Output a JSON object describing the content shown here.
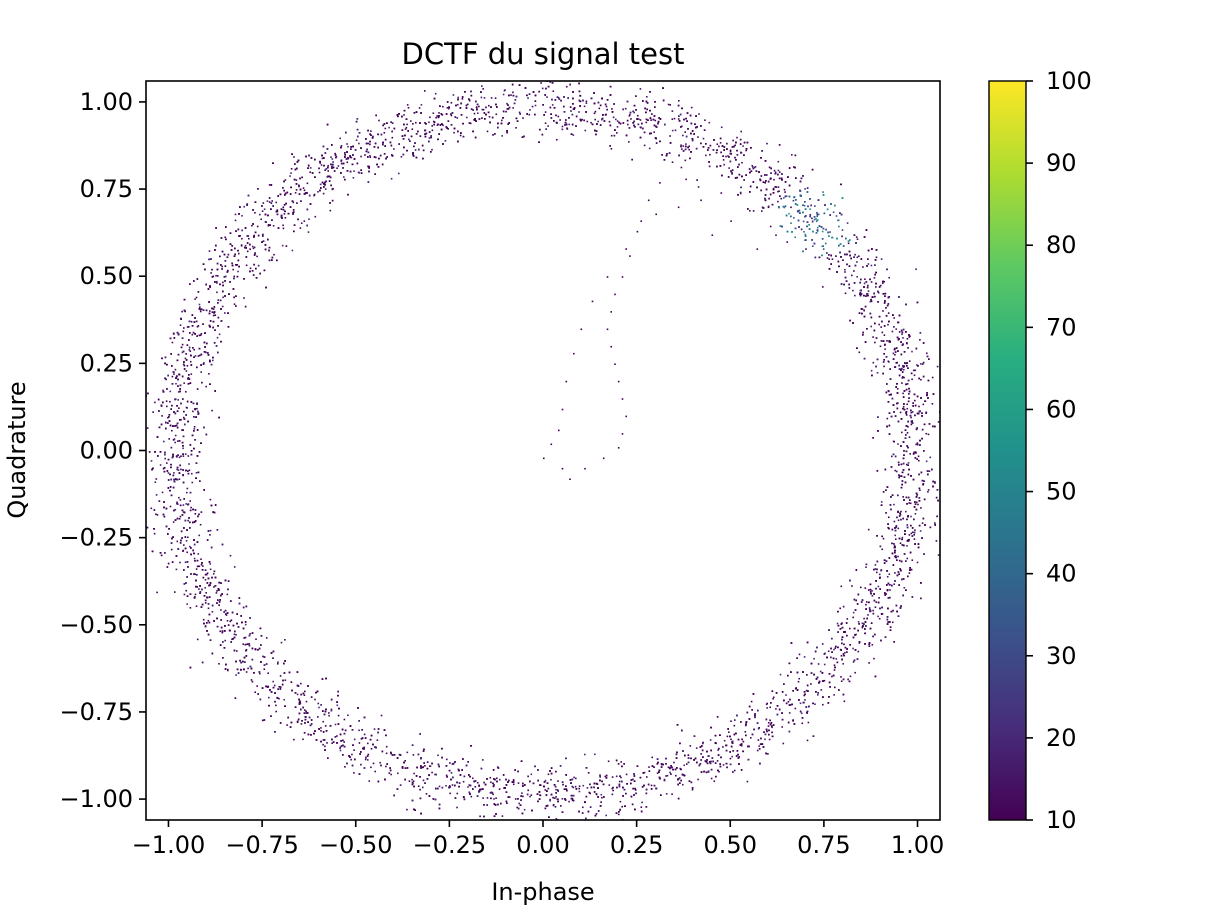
{
  "chart_data": {
    "type": "heatmap",
    "title": "DCTF du signal test",
    "xlabel": "In-phase",
    "ylabel": "Quadrature",
    "xlim": [
      -1.06,
      1.06
    ],
    "ylim": [
      -1.06,
      1.06
    ],
    "xticks": [
      -1.0,
      -0.75,
      -0.5,
      -0.25,
      0.0,
      0.25,
      0.5,
      0.75,
      1.0
    ],
    "xtick_labels": [
      "−1.00",
      "−0.75",
      "−0.50",
      "−0.25",
      "0.00",
      "0.25",
      "0.50",
      "0.75",
      "1.00"
    ],
    "yticks": [
      1.0,
      0.75,
      0.5,
      0.25,
      0.0,
      -0.25,
      -0.5,
      -0.75,
      -1.0
    ],
    "ytick_labels": [
      "1.00",
      "0.75",
      "0.50",
      "0.25",
      "0.00",
      "−0.25",
      "−0.50",
      "−0.75",
      "−1.00"
    ],
    "grid": false,
    "colorscale": "viridis",
    "colorbar": {
      "range": [
        10,
        100
      ],
      "ticks": [
        100,
        90,
        80,
        70,
        60,
        50,
        40,
        30,
        20,
        10
      ],
      "tick_labels": [
        "100",
        "90",
        "80",
        "70",
        "60",
        "50",
        "40",
        "30",
        "20",
        "10"
      ]
    },
    "structure": {
      "ring": {
        "center": [
          0.0,
          0.0
        ],
        "mean_radius": 0.985,
        "width": 0.09,
        "dominant_count": 12
      },
      "hotspot": {
        "center": [
          0.73,
          0.67
        ],
        "max_count": 60
      },
      "trace_points": [
        [
          0.0,
          -0.02
        ],
        [
          0.05,
          -0.05
        ],
        [
          0.07,
          -0.08
        ],
        [
          0.11,
          -0.05
        ],
        [
          0.16,
          -0.02
        ],
        [
          0.2,
          0.01
        ],
        [
          0.21,
          0.05
        ],
        [
          0.22,
          0.1
        ],
        [
          0.21,
          0.15
        ],
        [
          0.2,
          0.2
        ],
        [
          0.19,
          0.25
        ],
        [
          0.18,
          0.3
        ],
        [
          0.17,
          0.35
        ],
        [
          0.18,
          0.4
        ],
        [
          0.19,
          0.45
        ],
        [
          0.21,
          0.5
        ],
        [
          0.23,
          0.56
        ],
        [
          0.25,
          0.63
        ],
        [
          0.3,
          0.68
        ],
        [
          0.36,
          0.7
        ],
        [
          0.42,
          0.72
        ],
        [
          0.38,
          0.78
        ],
        [
          0.31,
          0.77
        ],
        [
          0.28,
          0.72
        ],
        [
          0.26,
          0.66
        ],
        [
          0.22,
          0.58
        ],
        [
          0.17,
          0.5
        ],
        [
          0.13,
          0.43
        ],
        [
          0.1,
          0.35
        ],
        [
          0.08,
          0.28
        ],
        [
          0.06,
          0.2
        ],
        [
          0.05,
          0.12
        ],
        [
          0.04,
          0.06
        ],
        [
          0.02,
          0.02
        ],
        [
          0.45,
          0.62
        ],
        [
          0.5,
          0.66
        ],
        [
          0.55,
          0.69
        ],
        [
          0.6,
          0.7
        ],
        [
          0.66,
          0.7
        ],
        [
          0.62,
          0.62
        ],
        [
          0.57,
          0.58
        ],
        [
          0.65,
          0.6
        ],
        [
          0.7,
          0.58
        ]
      ]
    }
  }
}
